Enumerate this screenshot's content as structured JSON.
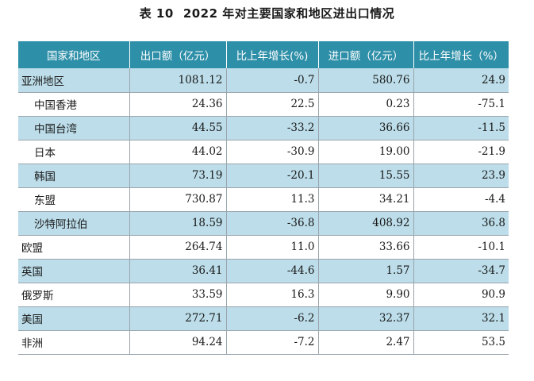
{
  "title": {
    "label": "表 10",
    "text": "2022 年对主要国家和地区进出口情况"
  },
  "headers": [
    "国家和地区",
    "出口额（亿元）",
    "比上年增长(%)",
    "进口额（亿元）",
    "比上年增长（%）"
  ],
  "rows": [
    {
      "name": "亚洲地区",
      "export": "1081.12",
      "export_growth": "-0.7",
      "import": "580.76",
      "import_growth": "24.9",
      "indent": false,
      "shade": true
    },
    {
      "name": "中国香港",
      "export": "24.36",
      "export_growth": "22.5",
      "import": "0.23",
      "import_growth": "-75.1",
      "indent": true,
      "shade": false
    },
    {
      "name": "中国台湾",
      "export": "44.55",
      "export_growth": "-33.2",
      "import": "36.66",
      "import_growth": "-11.5",
      "indent": true,
      "shade": true
    },
    {
      "name": "日本",
      "export": "44.02",
      "export_growth": "-30.9",
      "import": "19.00",
      "import_growth": "-21.9",
      "indent": true,
      "shade": false
    },
    {
      "name": "韩国",
      "export": "73.19",
      "export_growth": "-20.1",
      "import": "15.55",
      "import_growth": "23.9",
      "indent": true,
      "shade": true
    },
    {
      "name": "东盟",
      "export": "730.87",
      "export_growth": "11.3",
      "import": "34.21",
      "import_growth": "-4.4",
      "indent": true,
      "shade": false
    },
    {
      "name": "沙特阿拉伯",
      "export": "18.59",
      "export_growth": "-36.8",
      "import": "408.92",
      "import_growth": "36.8",
      "indent": true,
      "shade": true
    },
    {
      "name": "欧盟",
      "export": "264.74",
      "export_growth": "11.0",
      "import": "33.66",
      "import_growth": "-10.1",
      "indent": false,
      "shade": false
    },
    {
      "name": "英国",
      "export": "36.41",
      "export_growth": "-44.6",
      "import": "1.57",
      "import_growth": "-34.7",
      "indent": false,
      "shade": true
    },
    {
      "name": "俄罗斯",
      "export": "33.59",
      "export_growth": "16.3",
      "import": "9.90",
      "import_growth": "90.9",
      "indent": false,
      "shade": false
    },
    {
      "name": "美国",
      "export": "272.71",
      "export_growth": "-6.2",
      "import": "32.37",
      "import_growth": "32.1",
      "indent": false,
      "shade": true
    },
    {
      "name": "非洲",
      "export": "94.24",
      "export_growth": "-7.2",
      "import": "2.47",
      "import_growth": "53.5",
      "indent": false,
      "shade": false
    }
  ],
  "colors": {
    "header_bg": "#2e8fa8",
    "row_shade": "#bcdde9"
  }
}
